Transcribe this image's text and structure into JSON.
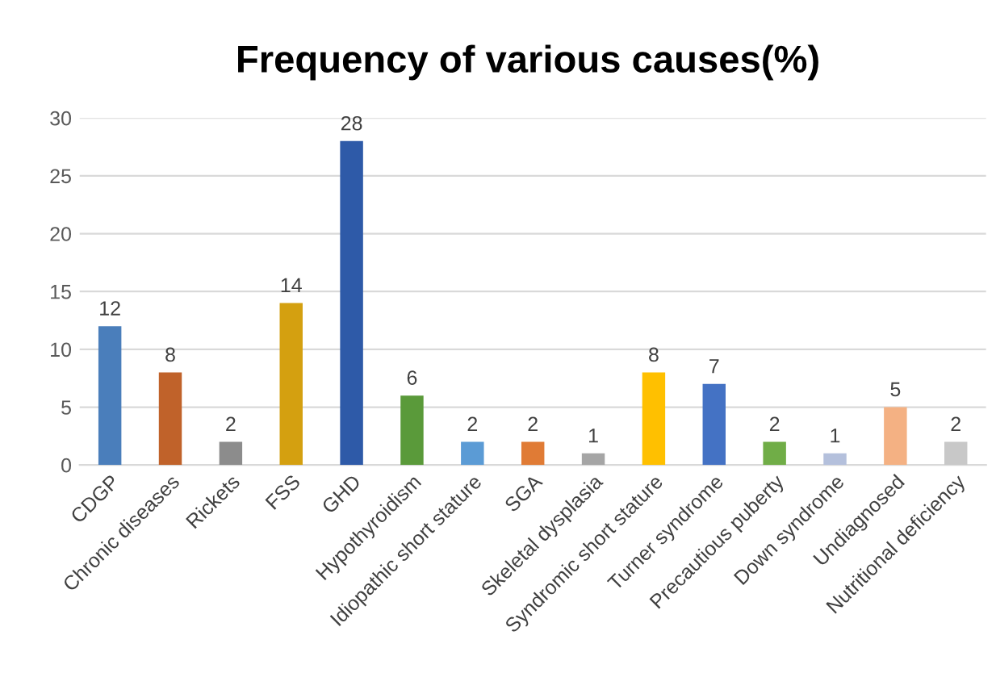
{
  "chart_data": {
    "type": "bar",
    "title": "Frequency of various causes(%)",
    "categories": [
      "CDGP",
      "Chronic diseases",
      "Rickets",
      "FSS",
      "GHD",
      "Hypothyroidism",
      "Idiopathic short stature",
      "SGA",
      "Skeletal dysplasia",
      "Syndromic short stature",
      "Turner syndrome",
      "Precautious puberty",
      "Down syndrome",
      "Undiagnosed",
      "Nutritional deficiency"
    ],
    "values": [
      12,
      8,
      2,
      14,
      28,
      6,
      2,
      2,
      1,
      8,
      7,
      2,
      1,
      5,
      2
    ],
    "colors": [
      "#4a7ebb",
      "#c0622a",
      "#8c8c8c",
      "#d4a010",
      "#2e5aa8",
      "#5a9a3a",
      "#5b9bd5",
      "#e07b35",
      "#a5a5a5",
      "#ffc000",
      "#4472c4",
      "#70ad47",
      "#b4c0dc",
      "#f4b183",
      "#c8c8c8"
    ],
    "ylim": [
      0,
      30
    ],
    "yticks": [
      0,
      5,
      10,
      15,
      20,
      25,
      30
    ],
    "grid": "y",
    "data_labels": true,
    "legend": false
  }
}
